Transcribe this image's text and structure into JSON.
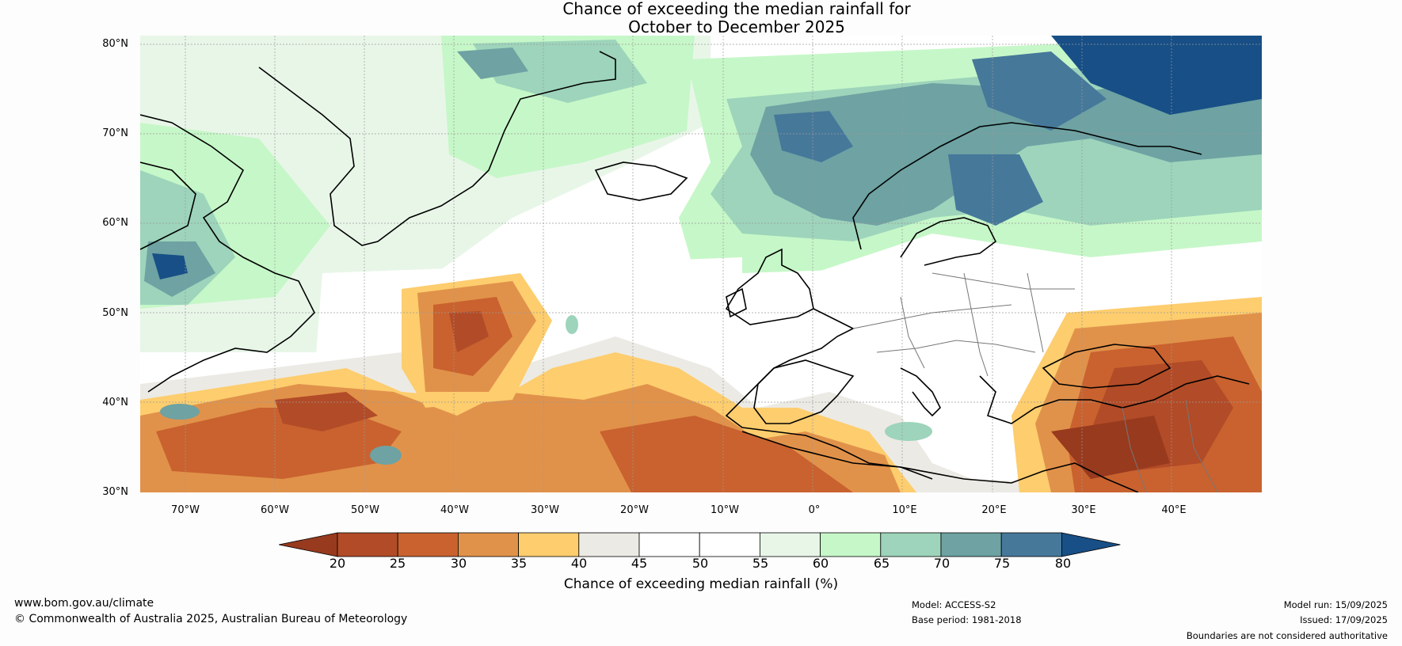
{
  "title": {
    "line1": "Chance of exceeding the median rainfall for",
    "line2": "October to December 2025"
  },
  "map": {
    "latitude_labels": [
      "80°N",
      "70°N",
      "60°N",
      "50°N",
      "40°N",
      "30°N"
    ],
    "longitude_labels": [
      "70°W",
      "60°W",
      "50°W",
      "40°W",
      "30°W",
      "20°W",
      "10°W",
      "0°",
      "10°E",
      "20°E",
      "30°E",
      "40°E"
    ],
    "extent": {
      "lon_min": -75,
      "lon_max": 50,
      "lat_min": 30,
      "lat_max": 81
    }
  },
  "legend": {
    "ticks": [
      "20",
      "25",
      "30",
      "35",
      "40",
      "45",
      "50",
      "55",
      "60",
      "65",
      "70",
      "75",
      "80"
    ],
    "colors": [
      "#983a1e",
      "#b24b27",
      "#c9622f",
      "#e1924a",
      "#fdcd6e",
      "#eceae4",
      "#ffffff",
      "#ffffff",
      "#e8f6e8",
      "#c6f7c8",
      "#9dd4bb",
      "#6ea2a3",
      "#46789a",
      "#174f86"
    ],
    "label": "Chance of exceeding median rainfall (%)"
  },
  "footer": {
    "website": "www.bom.gov.au/climate",
    "copyright": "© Commonwealth of Australia 2025, Australian Bureau of Meteorology",
    "model": "Model: ACCESS-S2",
    "base_period": "Base period: 1981-2018",
    "model_run": "Model run: 15/09/2025",
    "issued": "Issued: 17/09/2025",
    "disclaimer": "Boundaries are not considered authoritative"
  }
}
